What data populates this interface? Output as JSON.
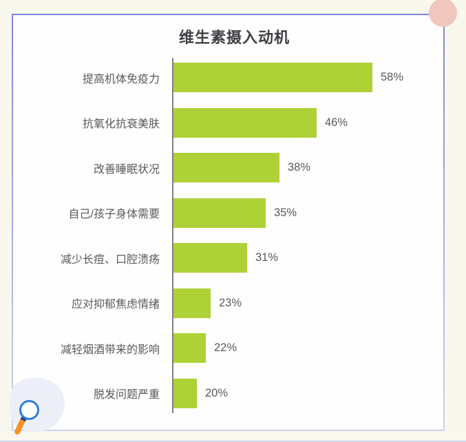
{
  "theme": {
    "page_bg": "#f8f8ef",
    "card_bg": "#fefefe",
    "border_gradient_top": "#7b87dd",
    "border_gradient_bottom": "#ccd1ef",
    "accent_circle": "#f1c6bd",
    "blob": "#edeff8",
    "magnifier_ring": "#2e7ed2",
    "magnifier_handle": "#f79220",
    "magnifier_joint": "#27418f",
    "bottom_line": "#cfd3ea",
    "axis_color": "#7f7f7f",
    "label_color": "#595959",
    "bar_color": "#aed137"
  },
  "chart_data": {
    "type": "bar",
    "orientation": "horizontal",
    "title": "维生素摄入动机",
    "categories": [
      "提高机体免疫力",
      "抗氧化抗衰美肤",
      "改善睡眠状况",
      "自己/孩子身体需要",
      "减少长痘、口腔溃疡",
      "应对抑郁焦虑情绪",
      "减轻烟酒带来的影响",
      "脱发问题严重"
    ],
    "values": [
      58,
      46,
      38,
      35,
      31,
      23,
      22,
      20
    ],
    "value_labels": [
      "58%",
      "46%",
      "38%",
      "35%",
      "31%",
      "23%",
      "22%",
      "20%"
    ],
    "unit": "%",
    "xlabel": "",
    "ylabel": "",
    "xlim": [
      15,
      60
    ],
    "grid": false,
    "legend": "none",
    "bar_color": "#aed137",
    "axis_color": "#7f7f7f"
  },
  "icons": {
    "magnifier": "magnifier-icon",
    "corner_dot": "decorative-circle"
  }
}
